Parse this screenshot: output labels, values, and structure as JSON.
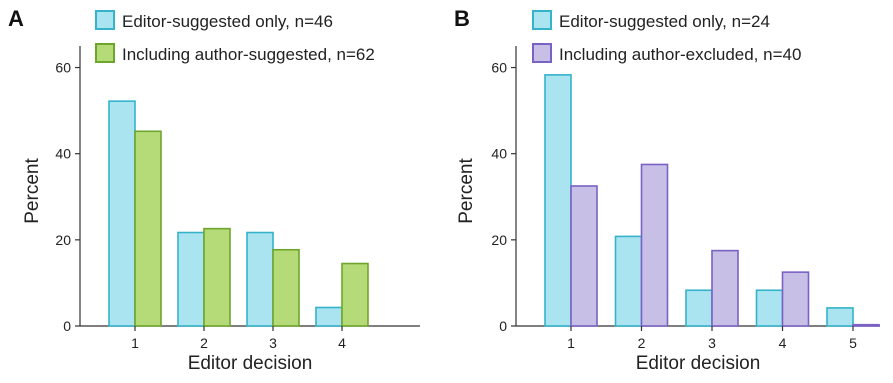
{
  "colors": {
    "editor_fill": "#a9e4f0",
    "editor_stroke": "#35b3c9",
    "author_suggested_fill": "#b5db79",
    "author_suggested_stroke": "#6ea52c",
    "author_excluded_fill": "#c7bfe6",
    "author_excluded_stroke": "#7a61c4"
  },
  "chart_data": [
    {
      "panel": "A",
      "type": "bar",
      "categories": [
        "1",
        "2",
        "3",
        "4"
      ],
      "series": [
        {
          "name": "Editor-suggested only, n=46",
          "values": [
            52.2,
            21.7,
            21.7,
            4.3
          ],
          "color": "editor"
        },
        {
          "name": "Including author-suggested, n=62",
          "values": [
            45.2,
            22.6,
            17.7,
            14.5
          ],
          "color": "author_suggested"
        }
      ],
      "xlabel": "Editor decision",
      "ylabel": "Percent",
      "ylim": [
        0,
        65
      ],
      "yticks": [
        0,
        20,
        40,
        60
      ],
      "legend": "top"
    },
    {
      "panel": "B",
      "type": "bar",
      "categories": [
        "1",
        "2",
        "3",
        "4",
        "5"
      ],
      "series": [
        {
          "name": "Editor-suggested only, n=24",
          "values": [
            58.3,
            20.8,
            8.3,
            8.3,
            4.2
          ],
          "color": "editor"
        },
        {
          "name": "Including author-excluded, n=40",
          "values": [
            32.5,
            37.5,
            17.5,
            12.5,
            0.3
          ],
          "color": "author_excluded"
        }
      ],
      "xlabel": "Editor decision",
      "ylabel": "Percent",
      "ylim": [
        0,
        65
      ],
      "yticks": [
        0,
        20,
        40,
        60
      ],
      "legend": "top"
    }
  ]
}
